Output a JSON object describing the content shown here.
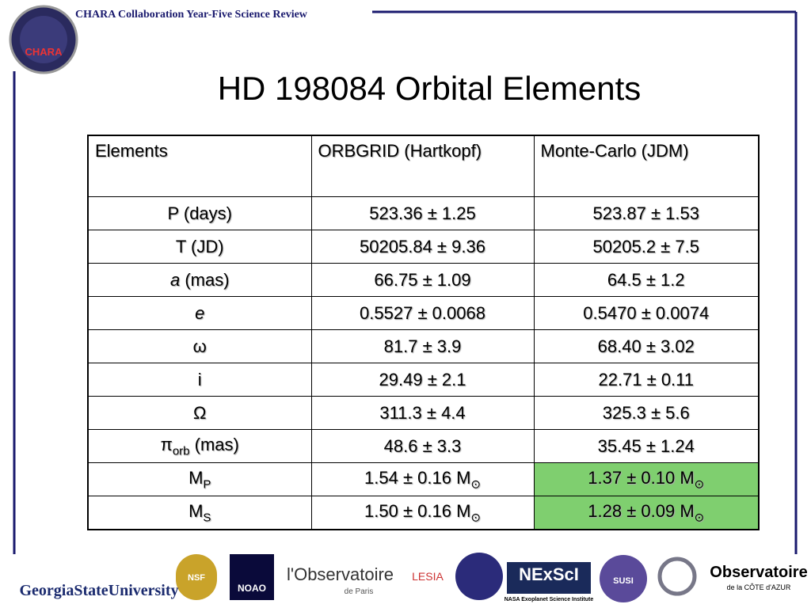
{
  "header": {
    "text": "CHARA Collaboration Year-Five Science Review",
    "logo": "CHARA"
  },
  "title": "HD 198084 Orbital Elements",
  "table": {
    "columns": [
      "Elements",
      "ORBGRID (Hartkopf)",
      "Monte-Carlo (JDM)"
    ],
    "rows": [
      [
        "P (days)",
        "523.36 ± 1.25",
        "523.87 ± 1.53"
      ],
      [
        "T (JD)",
        "50205.84 ± 9.36",
        "50205.2 ± 7.5"
      ],
      [
        [
          {
            "text": "a",
            "format": "italic"
          },
          " (mas)"
        ],
        "66.75 ± 1.09",
        "64.5 ± 1.2"
      ],
      [
        [
          {
            "text": "e",
            "format": "italic"
          }
        ],
        "0.5527 ± 0.0068",
        "0.5470 ± 0.0074"
      ],
      [
        "ω",
        "81.7 ± 3.9",
        "68.40 ± 3.02"
      ],
      [
        "i",
        "29.49 ± 2.1",
        "22.71 ± 0.11"
      ],
      [
        "Ω",
        "311.3 ± 4.4",
        "325.3 ± 5.6"
      ],
      [
        [
          "π",
          {
            "text": "orb",
            "format": "sub"
          },
          " (mas)"
        ],
        "48.6 ± 3.3",
        "35.45 ± 1.24"
      ],
      [
        [
          "M",
          {
            "text": "P",
            "format": "sub"
          }
        ],
        [
          "1.54 ± 0.16 M",
          {
            "text": "⊙",
            "format": "sub"
          }
        ],
        [
          "1.37 ± 0.10 M",
          {
            "text": "⊙",
            "format": "sub"
          }
        ]
      ],
      [
        [
          "M",
          {
            "text": "S",
            "format": "sub"
          }
        ],
        [
          "1.50 ± 0.16 M",
          {
            "text": "⊙",
            "format": "sub"
          }
        ],
        [
          "1.28 ± 0.09 M",
          {
            "text": "⊙",
            "format": "sub"
          }
        ]
      ]
    ],
    "highlight": [
      [
        8,
        2
      ],
      [
        9,
        2
      ]
    ],
    "highlight_color": "#7fcf6f"
  },
  "logos": [
    "GeorgiaStateUniversity",
    "NSF",
    "NOAO",
    "l'Observatoire",
    "de Paris",
    "LESIA",
    "NExScI",
    "NASA Exoplanet Science Institute",
    "SUSI",
    "Observatoire",
    "de la CÔTE d'AZUR"
  ]
}
